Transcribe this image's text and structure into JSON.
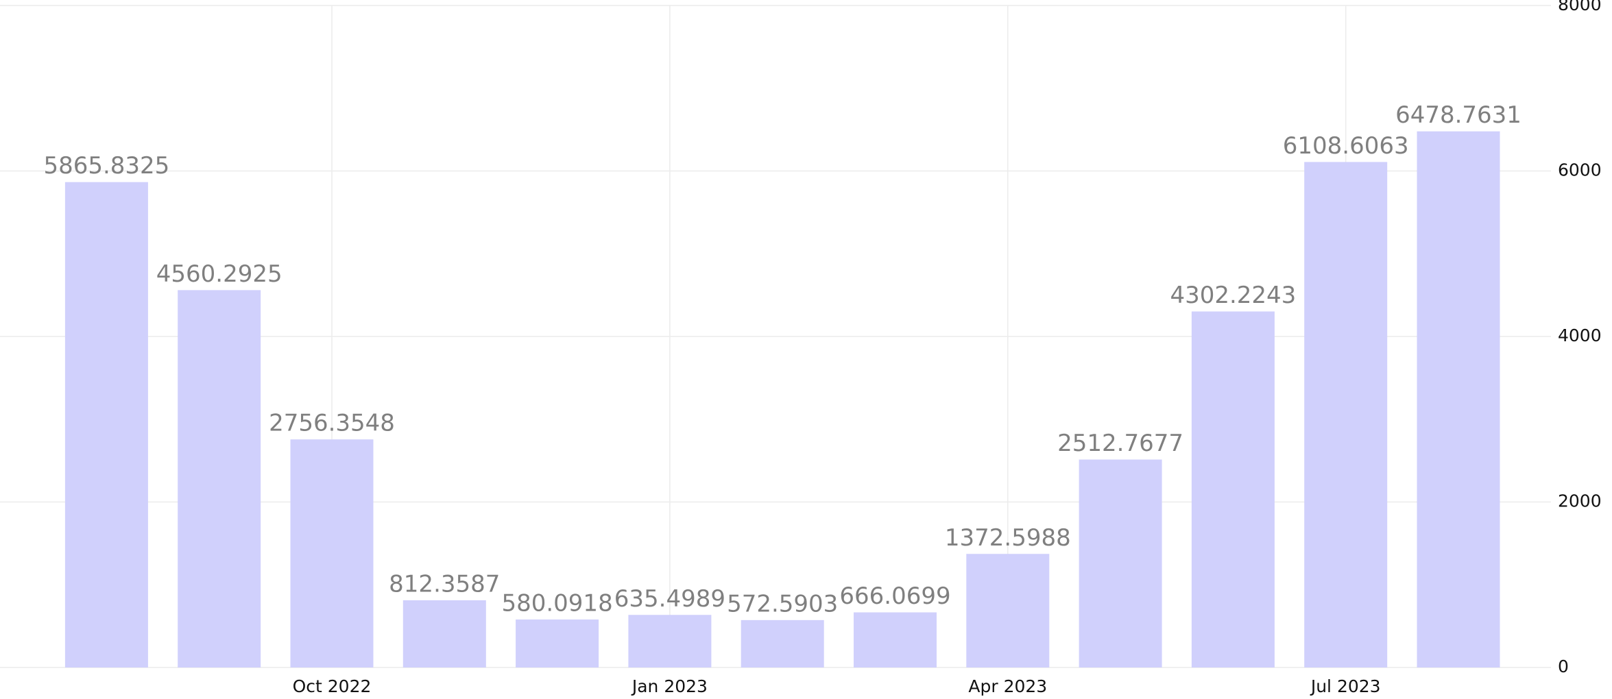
{
  "chart_data": {
    "type": "bar",
    "title": "",
    "xlabel": "",
    "ylabel": "",
    "ylim": [
      0,
      8000
    ],
    "grid": true,
    "y_axis_position": "right",
    "colors": {
      "bar": "#d0d0fc",
      "label": "#7f7f7f",
      "grid": "#ececec",
      "tick": "#111111"
    },
    "y_ticks": [
      {
        "value": 0,
        "label": "0"
      },
      {
        "value": 2000,
        "label": "2000"
      },
      {
        "value": 4000,
        "label": "4000"
      },
      {
        "value": 6000,
        "label": "6000"
      },
      {
        "value": 8000,
        "label": "8000"
      }
    ],
    "x": [
      "2022-08",
      "2022-09",
      "2022-10",
      "2022-11",
      "2022-12",
      "2023-01",
      "2023-02",
      "2023-03",
      "2023-04",
      "2023-05",
      "2023-06",
      "2023-07",
      "2023-08"
    ],
    "values": [
      5865.8325,
      4560.2925,
      2756.3548,
      812.3587,
      580.0918,
      635.4989,
      572.5903,
      666.0699,
      1372.5988,
      2512.7677,
      4302.2243,
      6108.6063,
      6478.7631
    ],
    "value_labels": [
      "5865.8325",
      "4560.2925",
      "2756.3548",
      "812.3587",
      "580.0918",
      "635.4989",
      "572.5903",
      "666.0699",
      "1372.5988",
      "2512.7677",
      "4302.2243",
      "6108.6063",
      "6478.7631"
    ],
    "x_ticks": [
      {
        "at": "2022-10",
        "label": "Oct 2022"
      },
      {
        "at": "2023-01",
        "label": "Jan 2023"
      },
      {
        "at": "2023-04",
        "label": "Apr 2023"
      },
      {
        "at": "2023-07",
        "label": "Jul 2023"
      }
    ]
  }
}
